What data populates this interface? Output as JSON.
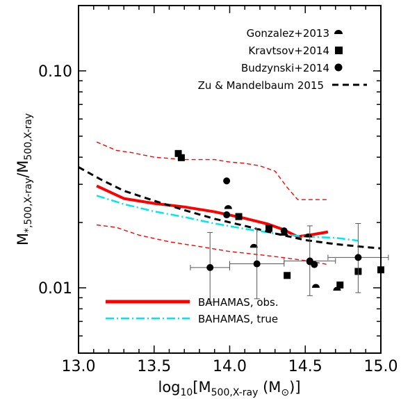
{
  "chart_data": {
    "type": "scatter",
    "xlabel": "log10[M500,X-ray (M⊙)]",
    "ylabel": "M*,500,X-ray/M500,X-ray",
    "xlim": [
      13.0,
      15.0
    ],
    "ylim": [
      0.005,
      0.2
    ],
    "y_scale": "log",
    "x_ticks": [
      13.0,
      13.5,
      14.0,
      14.5,
      15.0
    ],
    "x_tick_labels": [
      "13.0",
      "13.5",
      "14.0",
      "14.5",
      "15.0"
    ],
    "y_ticks": [
      0.01,
      0.1
    ],
    "y_tick_labels": [
      "0.01",
      "0.10"
    ],
    "legend_top": [
      {
        "label": "Gonzalez+2013",
        "marker": "half-circle"
      },
      {
        "label": "Kravtsov+2014",
        "marker": "square"
      },
      {
        "label": "Budzynski+2014",
        "marker": "circle"
      },
      {
        "label": "Zu & Mandelbaum 2015",
        "marker": "dashed-line"
      }
    ],
    "legend_bottom": [
      {
        "label": "BAHAMAS, obs.",
        "color": "#ff0000",
        "style": "thick-solid"
      },
      {
        "label": "BAHAMAS, true",
        "color": "#00e5ee",
        "style": "dash-dot"
      }
    ],
    "series": [
      {
        "name": "BAHAMAS, obs.",
        "type": "line",
        "color": "#ff0000",
        "x": [
          13.12,
          13.3,
          13.5,
          13.7,
          13.9,
          14.1,
          14.25,
          14.35,
          14.45,
          14.55,
          14.65
        ],
        "y": [
          0.0295,
          0.0258,
          0.0245,
          0.0236,
          0.0224,
          0.0209,
          0.0197,
          0.0186,
          0.0172,
          0.0176,
          0.0181
        ]
      },
      {
        "name": "upper",
        "type": "line",
        "color": "#ff0000",
        "x": [
          13.12,
          13.25,
          13.35,
          13.5,
          13.7,
          13.9,
          14.0,
          14.1,
          14.2,
          14.3,
          14.38,
          14.45,
          14.55,
          14.65
        ],
        "y": [
          0.047,
          0.043,
          0.042,
          0.04,
          0.039,
          0.039,
          0.038,
          0.0375,
          0.0365,
          0.0345,
          0.029,
          0.0255,
          0.0255,
          0.0255
        ]
      },
      {
        "name": "lower",
        "type": "line",
        "color": "#ff0000",
        "x": [
          13.12,
          13.25,
          13.4,
          13.6,
          13.8,
          14.0,
          14.2,
          14.35,
          14.45,
          14.55,
          14.65
        ],
        "y": [
          0.0195,
          0.019,
          0.0175,
          0.0163,
          0.0155,
          0.0147,
          0.0142,
          0.0138,
          0.0135,
          0.0132,
          0.0128
        ]
      },
      {
        "name": "BAHAMAS, true",
        "type": "line",
        "color": "#00e5ee",
        "x": [
          13.12,
          13.3,
          13.5,
          13.7,
          13.9,
          14.1,
          14.3,
          14.5,
          14.7,
          14.85
        ],
        "y": [
          0.0266,
          0.0243,
          0.0225,
          0.0212,
          0.0198,
          0.0187,
          0.0178,
          0.0172,
          0.017,
          0.0165
        ]
      },
      {
        "name": "Zu & Mandelbaum 2015",
        "type": "line",
        "color": "#000000",
        "x": [
          13.0,
          13.15,
          13.3,
          13.5,
          13.7,
          13.9,
          14.1,
          14.3,
          14.5,
          14.7,
          14.9,
          15.0
        ],
        "y": [
          0.036,
          0.0315,
          0.028,
          0.0252,
          0.0228,
          0.0208,
          0.0193,
          0.0178,
          0.0166,
          0.0159,
          0.0154,
          0.0152
        ]
      },
      {
        "name": "Gonzalez+2013",
        "type": "scatter",
        "marker": "half-circle",
        "x": [
          13.99,
          14.16,
          14.36,
          14.52,
          14.57,
          14.71
        ],
        "y": [
          0.0231,
          0.0153,
          0.0174,
          0.0171,
          0.01,
          0.0097
        ]
      },
      {
        "name": "Kravtsov+2014",
        "type": "scatter",
        "marker": "square",
        "x": [
          13.66,
          13.68,
          14.06,
          14.26,
          14.38,
          14.73,
          14.85,
          15.0
        ],
        "y": [
          0.0416,
          0.0398,
          0.0213,
          0.0188,
          0.0114,
          0.0103,
          0.0119,
          0.0121
        ]
      },
      {
        "name": "Budzynski+2014",
        "type": "scatter",
        "marker": "circle",
        "x": [
          13.87,
          14.18,
          14.53,
          14.85
        ],
        "y": [
          0.0124,
          0.0129,
          0.0133,
          0.0138
        ],
        "xerr": [
          0.13,
          0.18,
          0.17,
          0.2
        ],
        "yerr_low": [
          0.0086,
          0.0089,
          0.0092,
          0.0095
        ],
        "yerr_high": [
          0.018,
          0.0188,
          0.0193,
          0.0198
        ]
      },
      {
        "name": "extra circles",
        "type": "scatter",
        "marker": "circle",
        "x": [
          13.98,
          13.98,
          14.36,
          14.53,
          14.56
        ],
        "y": [
          0.0311,
          0.0217,
          0.0183,
          0.0132,
          0.0128
        ]
      }
    ]
  }
}
